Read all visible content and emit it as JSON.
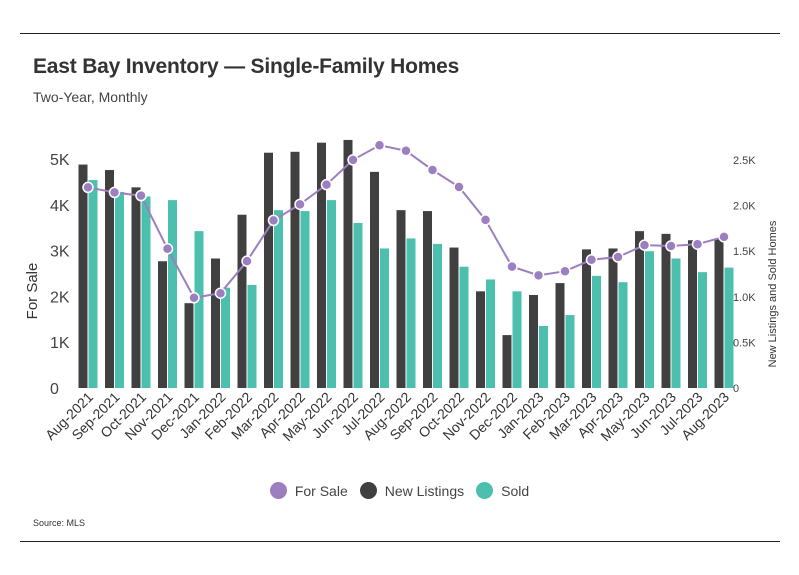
{
  "title": "East Bay Inventory — Single-Family Homes",
  "subtitle": "Two-Year, Monthly",
  "source": "Source: MLS",
  "colors": {
    "for_sale": "#9b7fbf",
    "new_listings": "#404040",
    "sold": "#4dbfae"
  },
  "chart_data": {
    "type": "bar",
    "categories": [
      "Aug-2021",
      "Sep-2021",
      "Oct-2021",
      "Nov-2021",
      "Dec-2021",
      "Jan-2022",
      "Feb-2022",
      "Mar-2022",
      "Apr-2022",
      "May-2022",
      "Jun-2022",
      "Jul-2022",
      "Aug-2022",
      "Sep-2022",
      "Oct-2022",
      "Nov-2022",
      "Dec-2022",
      "Jan-2023",
      "Feb-2023",
      "Mar-2023",
      "Apr-2023",
      "May-2023",
      "Jun-2023",
      "Jul-2023",
      "Aug-2023"
    ],
    "ylabel": "For Sale",
    "y2label": "New Listings and Sold Homes",
    "ylim": [
      0,
      5000
    ],
    "y2lim": [
      0,
      2500
    ],
    "yticks": [
      "0",
      "1K",
      "2K",
      "3K",
      "4K",
      "5K"
    ],
    "y2ticks": [
      "0",
      "0.5K",
      "1.0K",
      "1.5K",
      "2.0K",
      "2.5K"
    ],
    "legend_position": "bottom",
    "series": [
      {
        "name": "For Sale",
        "type": "line",
        "axis": "left",
        "values": [
          4380,
          4270,
          4200,
          3040,
          1970,
          2070,
          2770,
          3660,
          4010,
          4440,
          4980,
          5300,
          5180,
          4760,
          4390,
          3670,
          2650,
          2460,
          2550,
          2800,
          2860,
          3120,
          3100,
          3140,
          3300
        ]
      },
      {
        "name": "New Listings",
        "type": "bar",
        "axis": "right",
        "values": [
          2450,
          2390,
          2200,
          1390,
          930,
          1420,
          1900,
          2580,
          2590,
          2690,
          2720,
          2370,
          1950,
          1940,
          1540,
          1060,
          580,
          1020,
          1150,
          1520,
          1530,
          1720,
          1690,
          1620,
          1640
        ]
      },
      {
        "name": "Sold",
        "type": "bar",
        "axis": "right",
        "values": [
          2280,
          2150,
          2100,
          2060,
          1720,
          1100,
          1130,
          1950,
          1940,
          2060,
          1810,
          1530,
          1640,
          1580,
          1330,
          1190,
          1060,
          680,
          800,
          1230,
          1160,
          1500,
          1420,
          1270,
          1320
        ]
      }
    ]
  }
}
